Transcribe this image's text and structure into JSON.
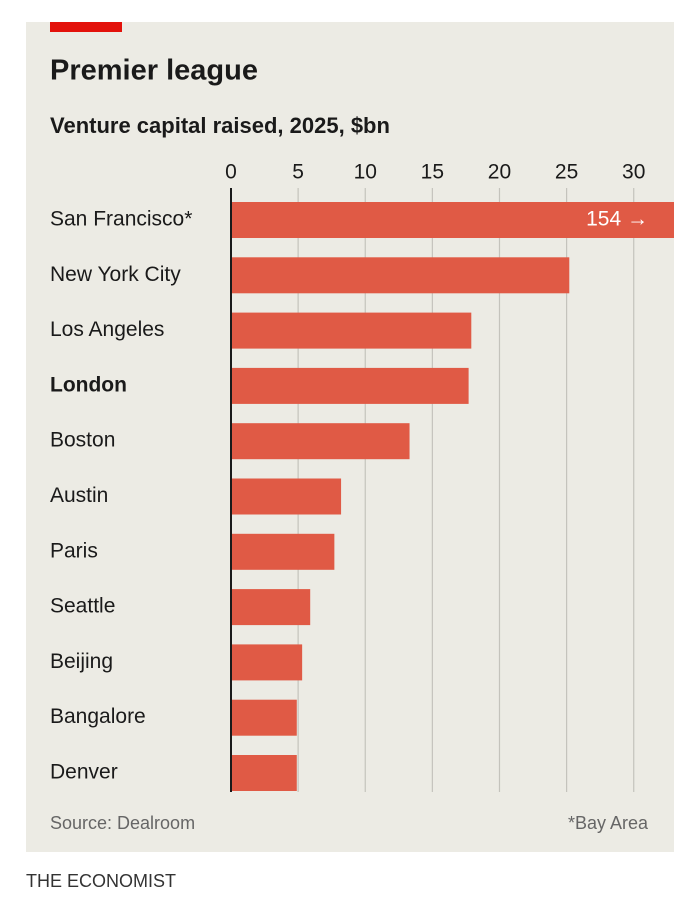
{
  "chart_data": {
    "type": "bar",
    "orientation": "horizontal",
    "title": "Premier league",
    "subtitle": "Venture capital raised, 2025, $bn",
    "categories": [
      "San Francisco*",
      "New York City",
      "Los Angeles",
      "London",
      "Boston",
      "Austin",
      "Paris",
      "Seattle",
      "Beijing",
      "Bangalore",
      "Denver"
    ],
    "values": [
      154,
      25.2,
      17.9,
      17.7,
      13.3,
      8.2,
      7.7,
      5.9,
      5.3,
      4.9,
      4.9
    ],
    "value_labels": [
      "154 →",
      null,
      null,
      null,
      null,
      null,
      null,
      null,
      null,
      null,
      null
    ],
    "highlight": "London",
    "color": "#e05a45",
    "xlim": [
      0,
      33
    ],
    "xticks": [
      0,
      5,
      10,
      15,
      20,
      25,
      30
    ],
    "grid": true,
    "source": "Source: Dealroom",
    "footnote": "*Bay Area",
    "publisher": "THE ECONOMIST"
  }
}
